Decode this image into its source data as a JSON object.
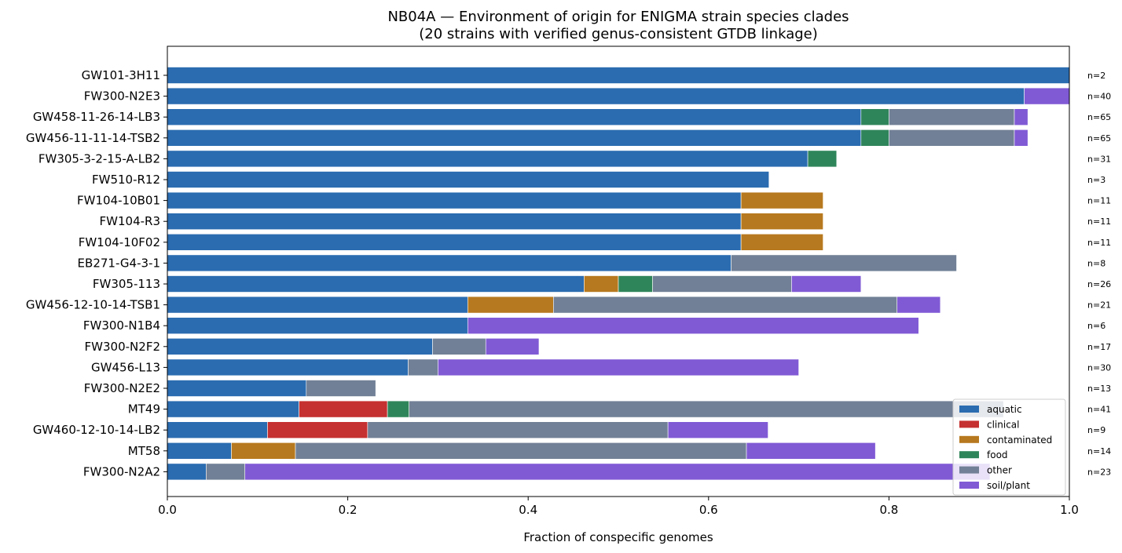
{
  "chart_data": {
    "type": "bar",
    "orientation": "horizontal",
    "stacked": true,
    "title": "NB04A — Environment of origin for ENIGMA strain species clades",
    "subtitle": "(20 strains with verified genus-consistent GTDB linkage)",
    "xlabel": "Fraction of conspecific genomes",
    "ylabel": "",
    "xlim": [
      0,
      1.0
    ],
    "xticks": [
      "0.0",
      "0.2",
      "0.4",
      "0.6",
      "0.8",
      "1.0"
    ],
    "grid": false,
    "legend_position": "lower-right",
    "categories": [
      "GW101-3H11",
      "FW300-N2E3",
      "GW458-11-26-14-LB3",
      "GW456-11-11-14-TSB2",
      "FW305-3-2-15-A-LB2",
      "FW510-R12",
      "FW104-10B01",
      "FW104-R3",
      "FW104-10F02",
      "EB271-G4-3-1",
      "FW305-113",
      "GW456-12-10-14-TSB1",
      "FW300-N1B4",
      "FW300-N2F2",
      "GW456-L13",
      "FW300-N2E2",
      "MT49",
      "GW460-12-10-14-LB2",
      "MT58",
      "FW300-N2A2"
    ],
    "counts": [
      "n=2",
      "n=40",
      "n=65",
      "n=65",
      "n=31",
      "n=3",
      "n=11",
      "n=11",
      "n=11",
      "n=8",
      "n=26",
      "n=21",
      "n=6",
      "n=17",
      "n=30",
      "n=13",
      "n=41",
      "n=9",
      "n=14",
      "n=23"
    ],
    "series": [
      {
        "name": "aquatic",
        "color": "#2b6cb0",
        "values": [
          1.0,
          0.95,
          0.769,
          0.769,
          0.71,
          0.667,
          0.636,
          0.636,
          0.636,
          0.625,
          0.462,
          0.333,
          0.333,
          0.294,
          0.267,
          0.154,
          0.146,
          0.111,
          0.071,
          0.043
        ]
      },
      {
        "name": "clinical",
        "color": "#c53030",
        "values": [
          0,
          0,
          0,
          0,
          0,
          0,
          0,
          0,
          0,
          0,
          0,
          0,
          0,
          0,
          0,
          0,
          0.098,
          0.111,
          0,
          0
        ]
      },
      {
        "name": "contaminated",
        "color": "#b7791f",
        "values": [
          0,
          0,
          0,
          0,
          0,
          0,
          0.091,
          0.091,
          0.091,
          0,
          0.038,
          0.095,
          0,
          0,
          0,
          0,
          0,
          0,
          0.071,
          0
        ]
      },
      {
        "name": "food",
        "color": "#2f855a",
        "values": [
          0,
          0,
          0.031,
          0.031,
          0.032,
          0,
          0,
          0,
          0,
          0,
          0.038,
          0,
          0,
          0,
          0,
          0,
          0.024,
          0,
          0,
          0
        ]
      },
      {
        "name": "other",
        "color": "#718096",
        "values": [
          0,
          0,
          0.139,
          0.139,
          0,
          0,
          0,
          0,
          0,
          0.25,
          0.154,
          0.381,
          0,
          0.059,
          0.033,
          0.077,
          0.659,
          0.333,
          0.5,
          0.043
        ]
      },
      {
        "name": "soil/plant",
        "color": "#805ad5",
        "values": [
          0,
          0.05,
          0.015,
          0.015,
          0,
          0,
          0,
          0,
          0,
          0,
          0.077,
          0.048,
          0.5,
          0.059,
          0.4,
          0,
          0,
          0.111,
          0.143,
          0.826
        ]
      }
    ]
  }
}
